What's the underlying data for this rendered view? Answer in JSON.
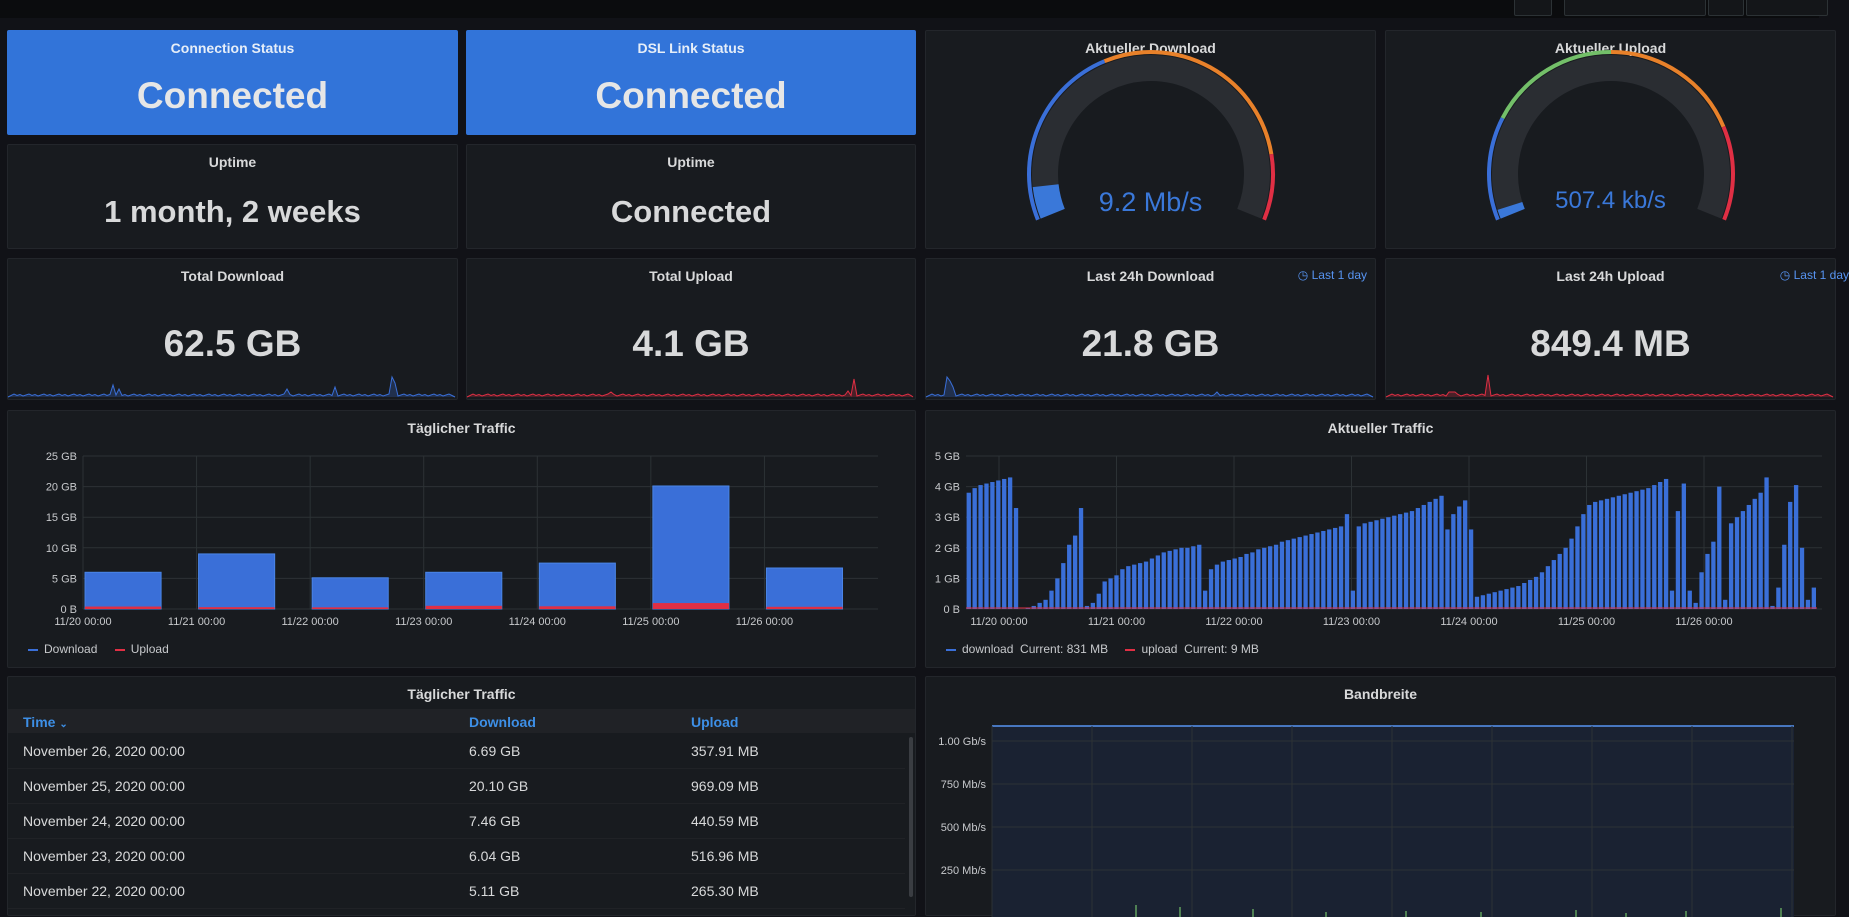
{
  "colors": {
    "blue": "#3274d9",
    "download": "#3a6fd8",
    "upload": "#e02f44",
    "green": "#73bf69",
    "orange": "#e8812a"
  },
  "panels": {
    "connection_status": {
      "title": "Connection Status",
      "value": "Connected"
    },
    "dsl_status": {
      "title": "DSL Link Status",
      "value": "Connected"
    },
    "uptime1": {
      "title": "Uptime",
      "value": "1 month, 2 weeks"
    },
    "uptime2": {
      "title": "Uptime",
      "value": "Connected"
    },
    "download_gauge": {
      "title": "Aktueller Download",
      "value": "9.2 Mb/s",
      "level": 0.07
    },
    "upload_gauge": {
      "title": "Aktueller Upload",
      "value": "507.4 kb/s",
      "level": 0.02
    },
    "total_download": {
      "title": "Total Download",
      "value": "62.5 GB"
    },
    "total_upload": {
      "title": "Total Upload",
      "value": "4.1 GB"
    },
    "last24_download": {
      "title": "Last 24h Download",
      "value": "21.8 GB",
      "time_tag": "Last 1 day"
    },
    "last24_upload": {
      "title": "Last 24h Upload",
      "value": "849.4 MB",
      "time_tag": "Last 1 day"
    },
    "daily_traffic_chart": {
      "title": "Täglicher Traffic"
    },
    "current_traffic_chart": {
      "title": "Aktueller Traffic"
    },
    "daily_table": {
      "title": "Täglicher Traffic",
      "columns": {
        "time": "Time",
        "download": "Download",
        "upload": "Upload"
      },
      "rows": [
        {
          "time": "November 26, 2020 00:00",
          "download": "6.69 GB",
          "upload": "357.91 MB"
        },
        {
          "time": "November 25, 2020 00:00",
          "download": "20.10 GB",
          "upload": "969.09 MB"
        },
        {
          "time": "November 24, 2020 00:00",
          "download": "7.46 GB",
          "upload": "440.59 MB"
        },
        {
          "time": "November 23, 2020 00:00",
          "download": "6.04 GB",
          "upload": "516.96 MB"
        },
        {
          "time": "November 22, 2020 00:00",
          "download": "5.11 GB",
          "upload": "265.30 MB"
        }
      ]
    },
    "bandwidth_chart": {
      "title": "Bandbreite"
    }
  },
  "chart_data": [
    {
      "type": "bar",
      "categories": [
        "11/20 00:00",
        "11/21 00:00",
        "11/22 00:00",
        "11/23 00:00",
        "11/24 00:00",
        "11/25 00:00",
        "11/26 00:00"
      ],
      "series": [
        {
          "name": "Download",
          "values": [
            6,
            9,
            5.1,
            6,
            7.5,
            20.1,
            6.7
          ]
        },
        {
          "name": "Upload",
          "values": [
            0.4,
            0.3,
            0.27,
            0.52,
            0.44,
            0.97,
            0.36
          ]
        }
      ],
      "y_ticks": [
        "0 B",
        "5 GB",
        "10 GB",
        "15 GB",
        "20 GB",
        "25 GB"
      ],
      "ylim": [
        0,
        25
      ],
      "grid": true,
      "legend": "bottom-left"
    },
    {
      "type": "bar",
      "x_ticks": [
        "11/20 00:00",
        "11/21 00:00",
        "11/22 00:00",
        "11/23 00:00",
        "11/24 00:00",
        "11/25 00:00",
        "11/26 00:00"
      ],
      "y_ticks": [
        "0 B",
        "1 GB",
        "2 GB",
        "3 GB",
        "4 GB",
        "5 GB"
      ],
      "ylim": [
        0,
        5
      ],
      "series": [
        {
          "name": "download",
          "current": "Current: 831 MB",
          "values": [
            3.8,
            3.95,
            4.05,
            4.1,
            4.15,
            4.2,
            4.25,
            4.3,
            3.3,
            0,
            0.05,
            0.1,
            0.2,
            0.3,
            0.6,
            1.0,
            1.5,
            2.1,
            2.4,
            3.3,
            0.1,
            0.2,
            0.5,
            0.9,
            1.0,
            1.1,
            1.3,
            1.4,
            1.45,
            1.5,
            1.55,
            1.65,
            1.75,
            1.85,
            1.9,
            1.95,
            2.0,
            2.0,
            2.05,
            2.1,
            0.6,
            1.3,
            1.45,
            1.55,
            1.6,
            1.65,
            1.7,
            1.8,
            1.85,
            1.95,
            2.0,
            2.05,
            2.1,
            2.2,
            2.25,
            2.3,
            2.35,
            2.4,
            2.45,
            2.5,
            2.55,
            2.6,
            2.65,
            2.7,
            3.1,
            0.6,
            2.7,
            2.8,
            2.85,
            2.9,
            2.95,
            3.0,
            3.05,
            3.1,
            3.15,
            3.2,
            3.3,
            3.4,
            3.5,
            3.6,
            3.7,
            2.6,
            3.1,
            3.35,
            3.55,
            2.6,
            0.4,
            0.45,
            0.5,
            0.55,
            0.6,
            0.65,
            0.7,
            0.75,
            0.85,
            0.95,
            1.05,
            1.2,
            1.4,
            1.6,
            1.8,
            2.0,
            2.3,
            2.7,
            3.1,
            3.4,
            3.5,
            3.55,
            3.6,
            3.65,
            3.7,
            3.75,
            3.8,
            3.85,
            3.9,
            3.95,
            4.05,
            4.15,
            4.25,
            0.6,
            3.2,
            4.1,
            0.6,
            0.2,
            1.2,
            1.8,
            2.2,
            4.0,
            0.3,
            2.8,
            3.0,
            3.2,
            3.4,
            3.6,
            3.8,
            4.3,
            0.1,
            0.7,
            2.1,
            3.5,
            4.05,
            2.0,
            0.3,
            0.7
          ],
          "color": "#3a6fd8"
        },
        {
          "name": "upload",
          "current": "Current: 9 MB",
          "color": "#e02f44"
        }
      ],
      "grid": true,
      "legend": "bottom-left"
    },
    {
      "type": "line",
      "y_ticks": [
        "1.00 Gb/s",
        "750 Mb/s",
        "500 Mb/s",
        "250 Mb/s"
      ],
      "grid": true
    }
  ]
}
